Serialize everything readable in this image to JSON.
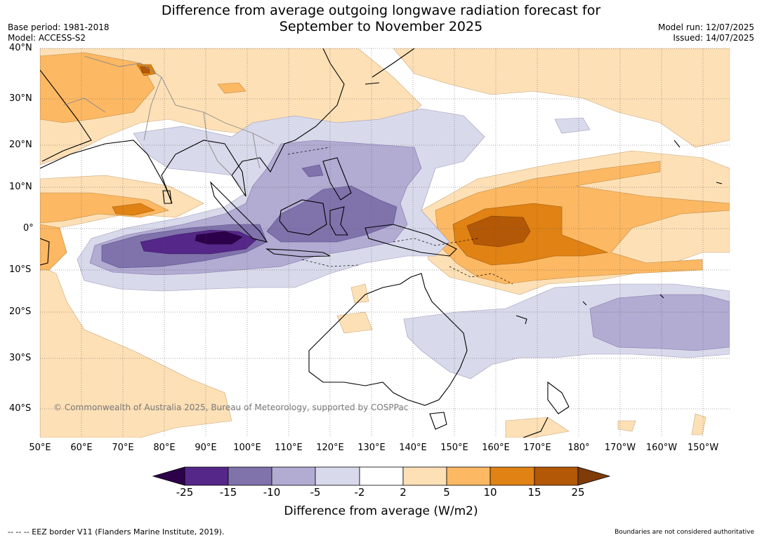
{
  "title_line1": "Difference from average outgoing longwave radiation forecast for",
  "title_line2": "September to November 2025",
  "base_period": "Base period: 1981-2018",
  "model": "Model: ACCESS-S2",
  "model_run": "Model run: 12/07/2025",
  "issued": "Issued: 14/07/2025",
  "latitudes": [
    "40°N",
    "30°N",
    "20°N",
    "10°N",
    "0°",
    "10°S",
    "20°S",
    "30°S",
    "40°S"
  ],
  "longitudes": [
    "50°E",
    "60°E",
    "70°E",
    "80°E",
    "90°E",
    "100°E",
    "110°E",
    "120°E",
    "130°E",
    "140°E",
    "150°E",
    "160°E",
    "170°E",
    "180°",
    "170°W",
    "160°W",
    "150°W"
  ],
  "copyright": "© Commonwealth of Australia 2025, Bureau of Meteorology, supported by COSPPac",
  "colorbar": {
    "title": "Difference from average (W/m2)",
    "ticks": [
      "-25",
      "-15",
      "-10",
      "-5",
      "-2",
      "2",
      "5",
      "10",
      "15",
      "25"
    ],
    "colors": [
      "#2d004b",
      "#542788",
      "#8073ac",
      "#b2abd2",
      "#d8daeb",
      "#ffffff",
      "#fee0b6",
      "#fdb863",
      "#e08214",
      "#b35806",
      "#7f3b08"
    ]
  },
  "eez_note": "--  --  -- EEZ border V11 (Flanders Marine Institute, 2019).",
  "disclaimer": "Boundaries are not considered authoritative"
}
